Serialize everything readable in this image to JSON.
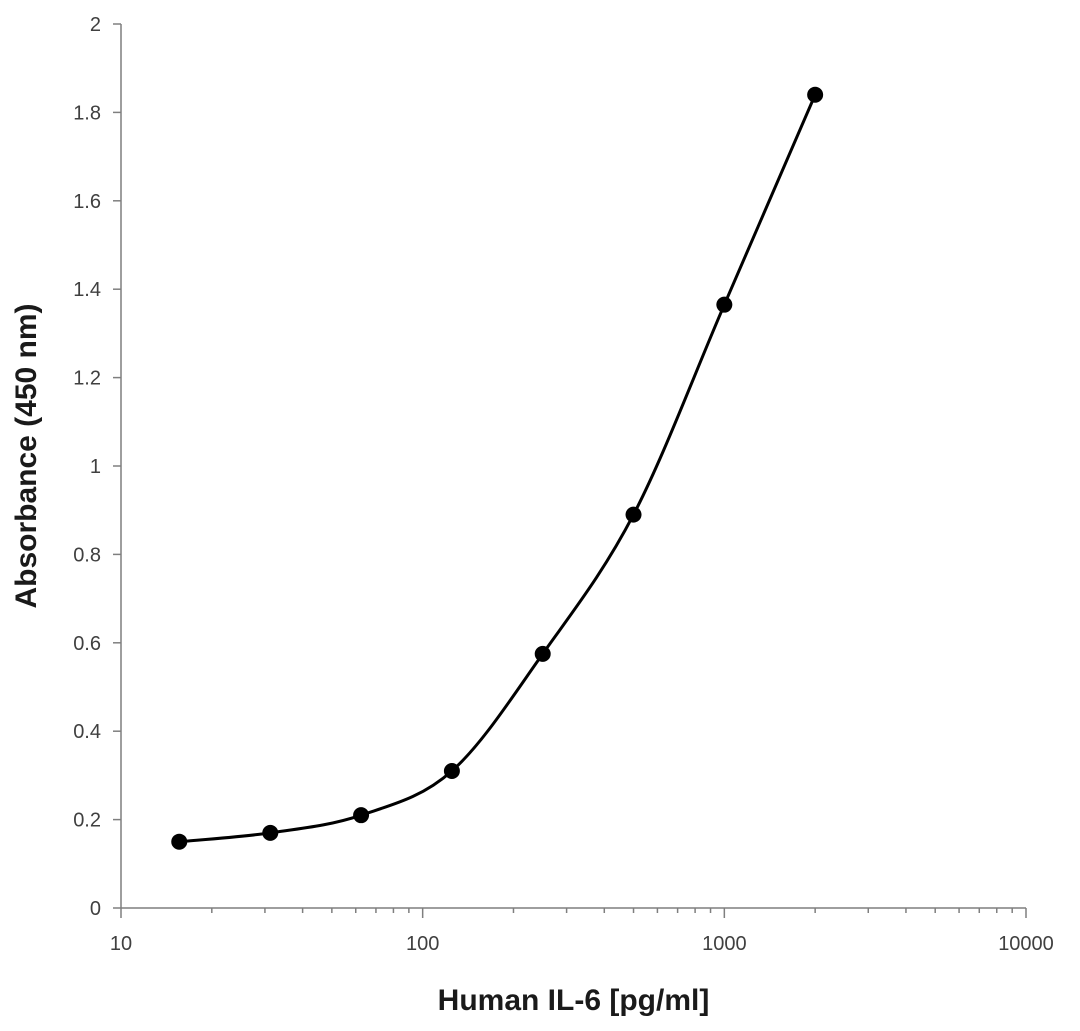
{
  "chart_data": {
    "type": "scatter",
    "title": "",
    "xlabel": "Human IL-6 [pg/ml]",
    "ylabel": "Absorbance (450 nm)",
    "xscale": "log",
    "xlim": [
      10,
      10000
    ],
    "ylim": [
      0,
      2
    ],
    "xticks": [
      10,
      100,
      1000,
      10000
    ],
    "xtick_labels": [
      "10",
      "100",
      "1000",
      "10000"
    ],
    "yticks": [
      0,
      0.2,
      0.4,
      0.6,
      0.8,
      1,
      1.2,
      1.4,
      1.6,
      1.8,
      2
    ],
    "ytick_labels": [
      "0",
      "0.2",
      "0.4",
      "0.6",
      "0.8",
      "1",
      "1.2",
      "1.4",
      "1.6",
      "1.8",
      "2"
    ],
    "grid": false,
    "legend": "none",
    "series": [
      {
        "x": [
          15.6,
          31.25,
          62.5,
          125,
          250,
          500,
          1000,
          2000
        ],
        "y": [
          0.15,
          0.17,
          0.21,
          0.31,
          0.575,
          0.89,
          1.365,
          1.84
        ],
        "color": "#000000",
        "marker": "circle",
        "smooth": true
      }
    ]
  }
}
